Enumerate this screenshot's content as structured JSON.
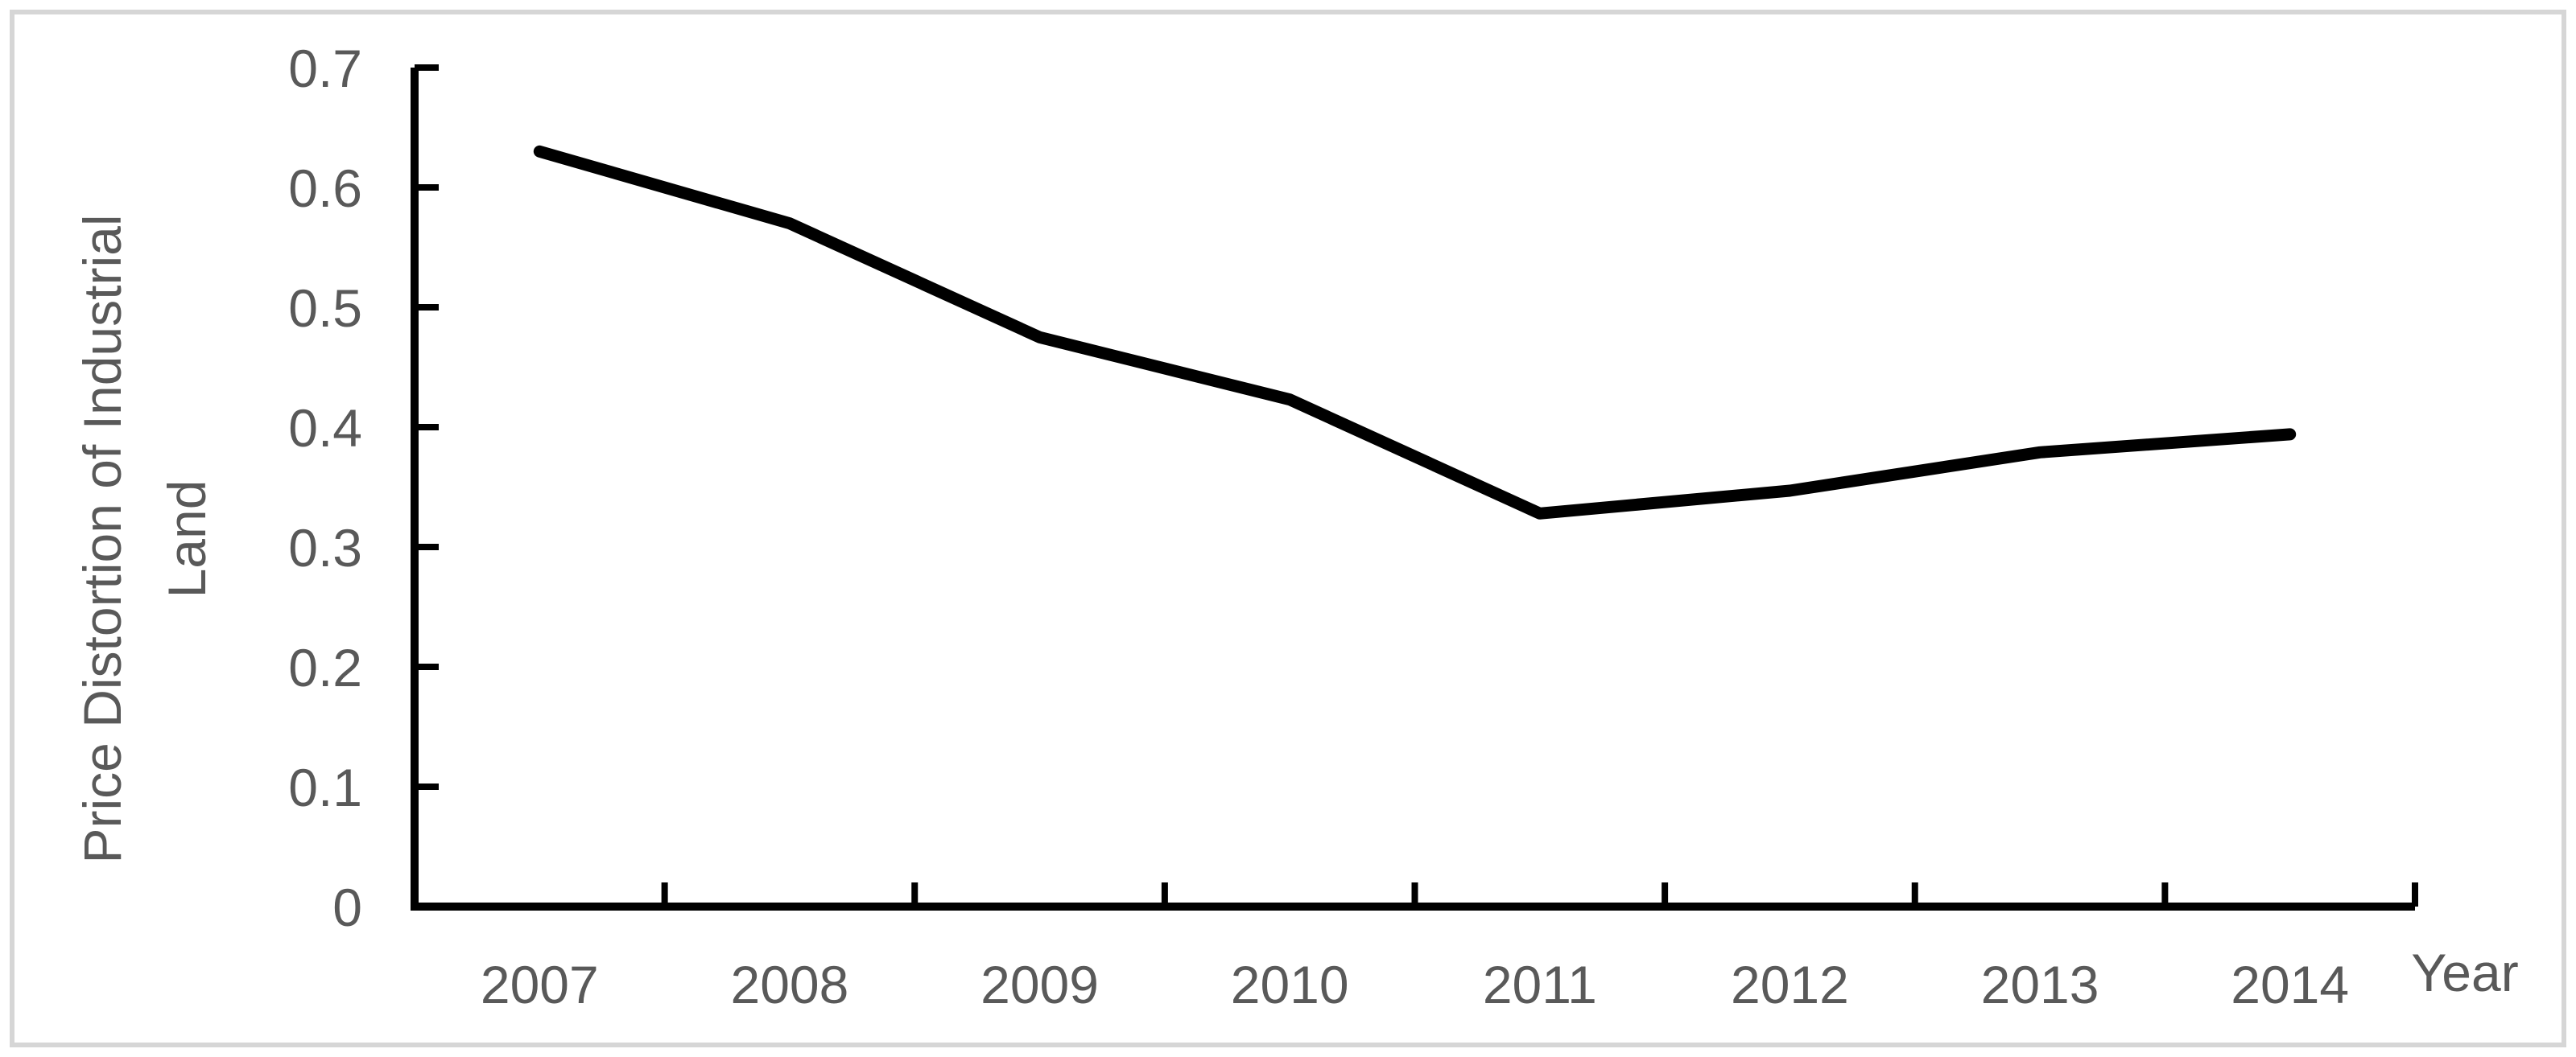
{
  "chart_data": {
    "type": "line",
    "title": "",
    "categories": [
      "2007",
      "2008",
      "2009",
      "2010",
      "2011",
      "2012",
      "2013",
      "2014"
    ],
    "series": [
      {
        "name": "Price Distortion of Industrial Land",
        "values": [
          0.63,
          0.57,
          0.475,
          0.423,
          0.328,
          0.347,
          0.379,
          0.394
        ]
      }
    ],
    "xlabel": "Year",
    "ylabel": "Price Distortion of Industrial Land",
    "ylabel_lines": [
      "Price Distortion of Industrial",
      "Land"
    ],
    "ylim": [
      0,
      0.7
    ],
    "y_ticks": [
      0,
      0.1,
      0.2,
      0.3,
      0.4,
      0.5,
      0.6,
      0.7
    ],
    "y_tick_labels": [
      "0",
      "0.1",
      "0.2",
      "0.3",
      "0.4",
      "0.5",
      "0.6",
      "0.7"
    ],
    "grid": false,
    "legend_position": "none",
    "markers": false,
    "colors": {
      "line": "#000000",
      "axis": "#000000",
      "labels": "#595959",
      "frame_border": "#d6d6d6",
      "background": "#ffffff"
    }
  }
}
